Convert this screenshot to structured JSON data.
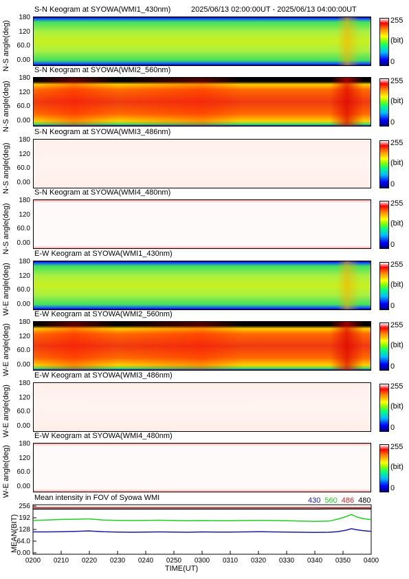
{
  "header": {
    "time_range": "2025/06/13 02:00:00UT - 2025/06/13 04:00:00UT"
  },
  "colorbar": {
    "max": "255",
    "unit": "(bit)",
    "min": "0"
  },
  "keograms": [
    {
      "title": "S-N Keogram at SYOWA(WMI1_430nm)",
      "ylabel": "N-S angle(deg)",
      "ticks": [
        "180",
        "120",
        "60.0",
        "0.00"
      ],
      "style": "green"
    },
    {
      "title": "S-N Keogram at SYOWA(WMI2_560nm)",
      "ylabel": "N-S angle(deg)",
      "ticks": [
        "180",
        "120",
        "60.0",
        "0.00"
      ],
      "style": "red"
    },
    {
      "title": "S-N Keogram at SYOWA(WMI3_486nm)",
      "ylabel": "N-S angle(deg)",
      "ticks": [
        "180",
        "120",
        "60.0",
        "0.00"
      ],
      "style": "pale"
    },
    {
      "title": "S-N Keogram at SYOWA(WMI4_480nm)",
      "ylabel": "N-S angle(deg)",
      "ticks": [
        "180",
        "120",
        "60.0",
        "0.00"
      ],
      "style": "white"
    },
    {
      "title": "E-W Keogram at SYOWA(WMI1_430nm)",
      "ylabel": "W-E angle(deg)",
      "ticks": [
        "180",
        "120",
        "60.0",
        "0.00"
      ],
      "style": "green"
    },
    {
      "title": "E-W Keogram at SYOWA(WMI2_560nm)",
      "ylabel": "W-E angle(deg)",
      "ticks": [
        "180",
        "120",
        "60.0",
        "0.00"
      ],
      "style": "red"
    },
    {
      "title": "E-W Keogram at SYOWA(WMI3_486nm)",
      "ylabel": "W-E angle(deg)",
      "ticks": [
        "180",
        "120",
        "60.0",
        "0.00"
      ],
      "style": "pale"
    },
    {
      "title": "E-W Keogram at SYOWA(WMI4_480nm)",
      "ylabel": "W-E angle(deg)",
      "ticks": [
        "180",
        "120",
        "60.0",
        "0.00"
      ],
      "style": "white"
    }
  ],
  "mean_plot": {
    "title": "Mean intensity in FOV of Syowa WMI",
    "ylabel": "MEAN(BIT)",
    "xlabel": "TIME(UT)",
    "yticks": [
      "256",
      "192",
      "128",
      "64.0",
      "0.00"
    ],
    "legend": [
      {
        "label": "430",
        "color": "#1a1aa0"
      },
      {
        "label": "560",
        "color": "#22cc22"
      },
      {
        "label": "486",
        "color": "#cc2222"
      },
      {
        "label": "480",
        "color": "#000000"
      }
    ]
  },
  "xticks": [
    "0200",
    "0210",
    "0220",
    "0230",
    "0240",
    "0250",
    "0300",
    "0310",
    "0320",
    "0330",
    "0340",
    "0350",
    "0400"
  ],
  "chart_data": {
    "type": "line",
    "title": "Mean intensity in FOV of Syowa WMI",
    "xlabel": "TIME(UT)",
    "ylabel": "MEAN(BIT)",
    "ylim": [
      0,
      256
    ],
    "x": [
      "0200",
      "0205",
      "0210",
      "0215",
      "0220",
      "0225",
      "0230",
      "0235",
      "0240",
      "0245",
      "0250",
      "0255",
      "0300",
      "0305",
      "0310",
      "0315",
      "0320",
      "0325",
      "0330",
      "0335",
      "0340",
      "0345",
      "0348",
      "0351",
      "0353",
      "0355",
      "0357",
      "0400"
    ],
    "series": [
      {
        "name": "430",
        "color": "#1a1aa0",
        "values": [
          115,
          115,
          116,
          118,
          120,
          116,
          114,
          113,
          114,
          115,
          114,
          113,
          115,
          114,
          114,
          115,
          116,
          115,
          114,
          113,
          112,
          113,
          116,
          124,
          132,
          126,
          122,
          118
        ]
      },
      {
        "name": "560",
        "color": "#22cc22",
        "values": [
          178,
          180,
          183,
          184,
          186,
          180,
          178,
          177,
          178,
          179,
          177,
          176,
          177,
          176,
          176,
          177,
          178,
          177,
          176,
          174,
          172,
          174,
          184,
          198,
          210,
          196,
          188,
          182
        ]
      },
      {
        "name": "486",
        "color": "#cc2222",
        "values": [
          248,
          248,
          248,
          248,
          248,
          248,
          248,
          248,
          248,
          248,
          248,
          248,
          248,
          248,
          248,
          248,
          248,
          248,
          248,
          248,
          248,
          248,
          248,
          248,
          248,
          248,
          248,
          248
        ]
      },
      {
        "name": "480",
        "color": "#000000",
        "values": [
          240,
          240,
          240,
          240,
          240,
          240,
          240,
          240,
          240,
          240,
          240,
          240,
          240,
          240,
          240,
          240,
          240,
          240,
          240,
          240,
          240,
          241,
          241,
          241,
          241,
          241,
          241,
          241
        ]
      }
    ]
  }
}
